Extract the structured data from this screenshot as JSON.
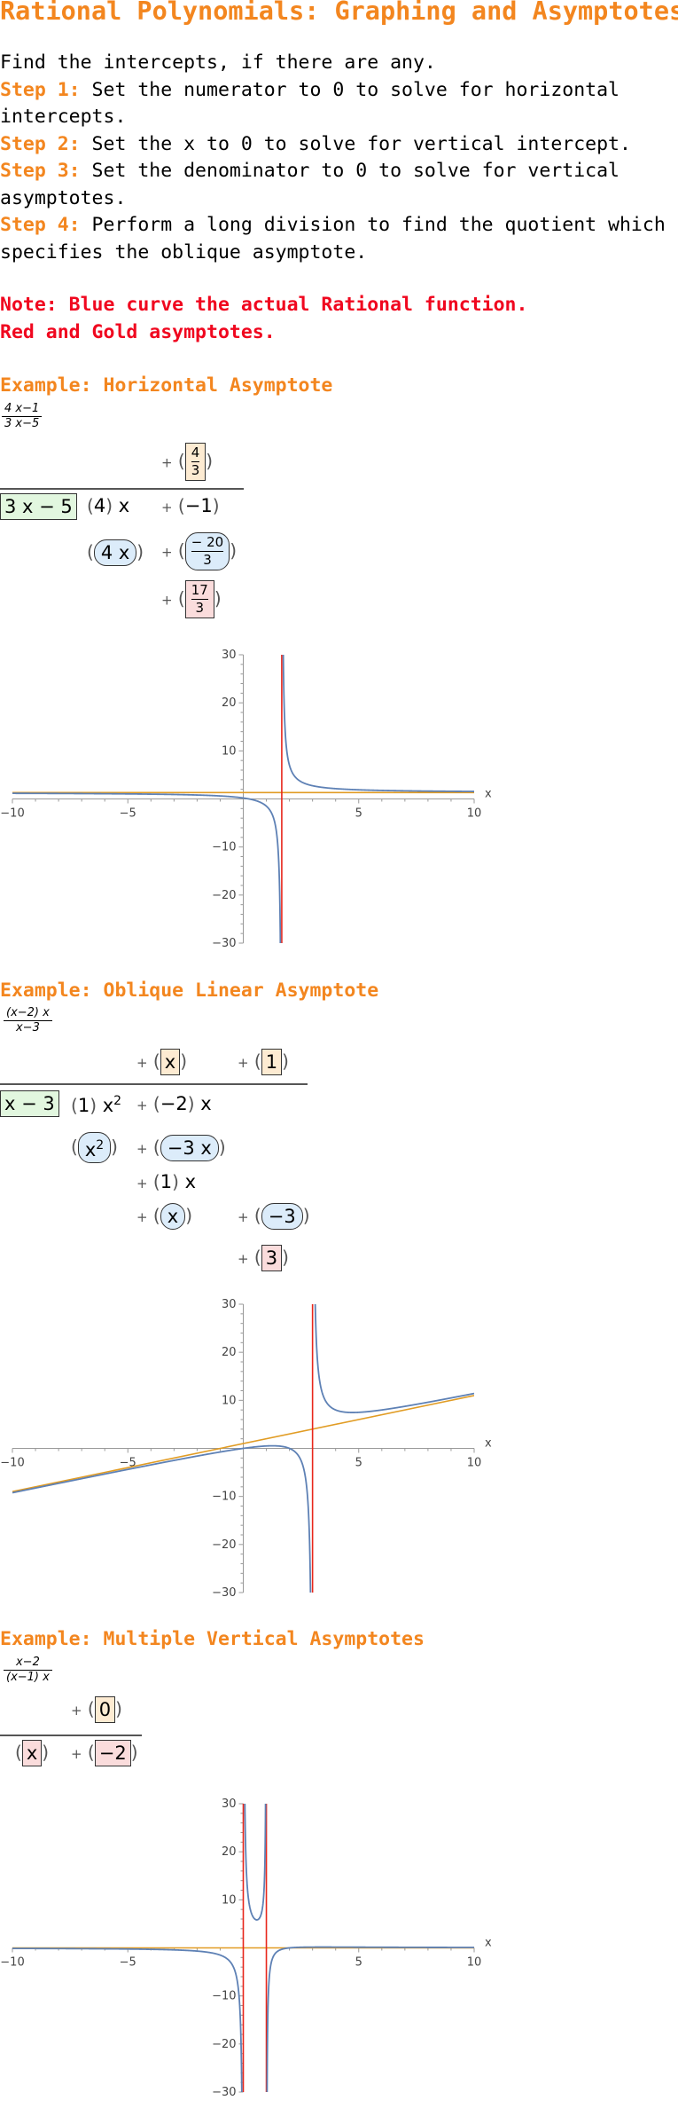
{
  "title": "Rational Polynomials: Graphing and Asymptotes",
  "intro": "Find the intercepts, if there are any.",
  "steps": [
    {
      "label": "Step 1:",
      "text": " Set the numerator to 0 to solve for horizontal intercepts."
    },
    {
      "label": "Step 2:",
      "text": " Set the x to 0 to solve for vertical intercept."
    },
    {
      "label": "Step 3:",
      "text": " Set the denominator to 0 to solve for vertical asymptotes."
    },
    {
      "label": "Step 4:",
      "text": " Perform a long division to find the quotient which specifies the oblique asymptote."
    }
  ],
  "note": {
    "line1": "Note: Blue curve the actual Rational function.",
    "line2": "Red and Gold asymptotes."
  },
  "examples": [
    {
      "heading": "Example: Horizontal Asymptote",
      "fraction": {
        "num": "4 x−1",
        "den": "3 x−5"
      },
      "division": {
        "quotient": {
          "num": "4",
          "den": "3"
        },
        "divisor": "3 x − 5",
        "dividend_coef": "4",
        "dividend_var": "x",
        "dividend_const": "−1",
        "sub_term": "4 x",
        "sub_const": {
          "num": "20",
          "den": "3",
          "sign": "−"
        },
        "remainder": {
          "num": "17",
          "den": "3"
        }
      }
    },
    {
      "heading": "Example: Oblique Linear Asymptote",
      "fraction": {
        "num": "(x−2) x",
        "den": "x−3"
      },
      "division": {
        "q1": "x",
        "q2": "1",
        "divisor": "x − 3",
        "d_coef": "1",
        "d_var": "x",
        "d_exp": "2",
        "d_coef2": "−2",
        "d_var2": "x",
        "s1": "x",
        "s1_exp": "2",
        "s2": "−3 x",
        "r_coef": "1",
        "r_var": "x",
        "s3": "x",
        "s4": "−3",
        "rem": "3"
      }
    },
    {
      "heading": "Example: Multiple Vertical Asymptotes",
      "fraction": {
        "num": "x−2",
        "den": "(x−1) x"
      },
      "division": {
        "q": "0",
        "d1": "x",
        "d2": "−2"
      }
    }
  ],
  "chart_data": [
    {
      "type": "line",
      "function": "(4x-1)/(3x-5)",
      "xlim": [
        -10,
        10
      ],
      "ylim": [
        -30,
        30
      ],
      "xlabel": "x",
      "x_ticks": [
        "−10",
        "−5",
        "5",
        "10"
      ],
      "y_ticks": [
        "30",
        "20",
        "10",
        "−10",
        "−20",
        "−30"
      ],
      "vertical_asymptotes": [
        1.6667
      ],
      "horizontal_asymptote": 1.3333,
      "colors": {
        "curve": "#5e81b5",
        "vertical": "#e8261b",
        "oblique": "#e19c24"
      }
    },
    {
      "type": "line",
      "function": "((x-2)x)/(x-3)",
      "xlim": [
        -10,
        10
      ],
      "ylim": [
        -30,
        30
      ],
      "xlabel": "x",
      "x_ticks": [
        "−10",
        "−5",
        "5",
        "10"
      ],
      "y_ticks": [
        "30",
        "20",
        "10",
        "−10",
        "−20",
        "−30"
      ],
      "vertical_asymptotes": [
        3
      ],
      "oblique_asymptote": {
        "slope": 1,
        "intercept": 1
      },
      "colors": {
        "curve": "#5e81b5",
        "vertical": "#e8261b",
        "oblique": "#e19c24"
      }
    },
    {
      "type": "line",
      "function": "(x-2)/((x-1)x)",
      "xlim": [
        -10,
        10
      ],
      "ylim": [
        -30,
        30
      ],
      "xlabel": "x",
      "x_ticks": [
        "−10",
        "−5",
        "5",
        "10"
      ],
      "y_ticks": [
        "30",
        "20",
        "10",
        "−10",
        "−20",
        "−30"
      ],
      "vertical_asymptotes": [
        0,
        1
      ],
      "horizontal_asymptote": 0,
      "colors": {
        "curve": "#5e81b5",
        "vertical": "#e8261b",
        "oblique": "#e19c24"
      }
    }
  ]
}
